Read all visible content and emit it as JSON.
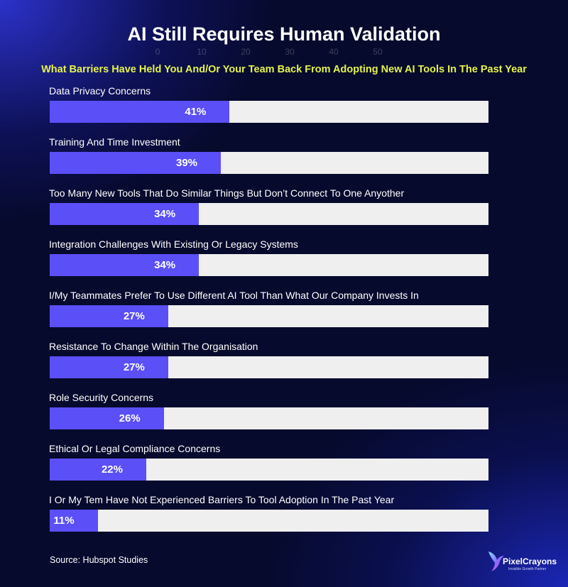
{
  "chart_data": {
    "type": "bar",
    "orientation": "horizontal",
    "title": "AI Still Requires Human Validation",
    "subtitle": "What Barriers Have Held You And/Or Your Team Back From Adopting New AI Tools In The Past Year",
    "categories": [
      "Data Privacy Concerns",
      "Training And Time Investment",
      "Too Many New Tools That Do Similar Things But Don’t Connect To One Anyother",
      "Integration Challenges With Existing Or Legacy Systems",
      "I/My Teammates Prefer To Use Different AI Tool Than What Our Company Invests In",
      "Resistance To Change Within The Organisation",
      "Role Security Concerns",
      "Ethical Or Legal Compliance Concerns",
      "I Or My Tem Have Not Experienced Barriers To Tool Adoption In The Past Year"
    ],
    "values": [
      41,
      39,
      34,
      34,
      27,
      27,
      26,
      22,
      11
    ],
    "value_labels": [
      "41%",
      "39%",
      "34%",
      "34%",
      "27%",
      "27%",
      "26%",
      "22%",
      "11%"
    ],
    "xlim": [
      0,
      100
    ],
    "ghost_tick_labels": [
      "0",
      "10",
      "20",
      "30",
      "40",
      "50"
    ],
    "colors": {
      "bar": "#5b4ff8",
      "track": "#efefef",
      "subtitle": "#e4f24a",
      "background": "#060a2c"
    }
  },
  "footer": {
    "source": "Source: Hubspot Studies",
    "brand_name": "PixelCrayons",
    "brand_tagline": "Invisible Growth Partner",
    "brand_icon": "hummingbird-icon"
  }
}
